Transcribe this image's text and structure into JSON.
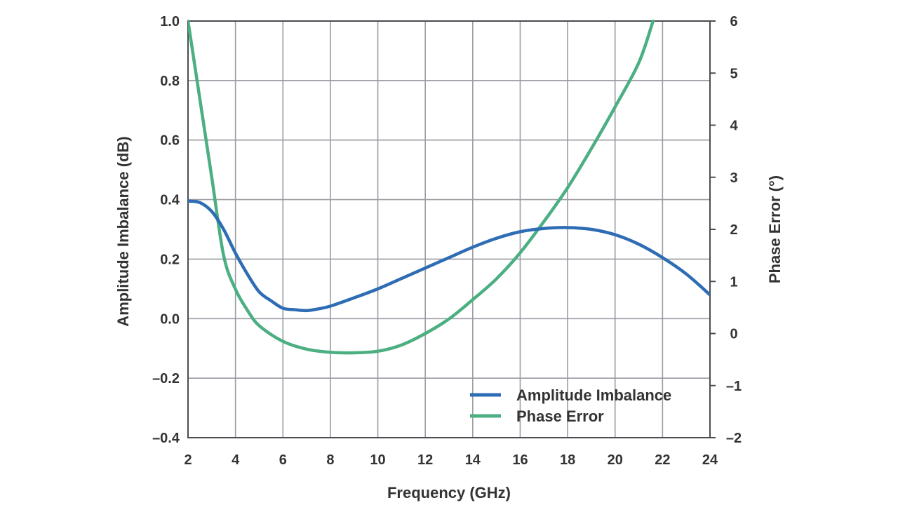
{
  "chart_data": {
    "type": "line",
    "title": "",
    "xlabel": "Frequency (GHz)",
    "ylabel_left": "Amplitude Imbalance (dB)",
    "ylabel_right": "Phase Error (°)",
    "xlim": [
      2,
      24
    ],
    "ylim_left": [
      -0.4,
      1.0
    ],
    "ylim_right": [
      -2,
      6
    ],
    "x_ticks": [
      2,
      4,
      6,
      8,
      10,
      12,
      14,
      16,
      18,
      20,
      22,
      24
    ],
    "x_tick_labels": [
      "2",
      "4",
      "6",
      "8",
      "10",
      "12",
      "14",
      "16",
      "18",
      "20",
      "22",
      "24"
    ],
    "y_left_ticks": [
      -0.4,
      -0.2,
      0.0,
      0.2,
      0.4,
      0.6,
      0.8,
      1.0
    ],
    "y_left_tick_labels": [
      "–0.4",
      "–0.2",
      "0.0",
      "0.2",
      "0.4",
      "0.6",
      "0.8",
      "1.0"
    ],
    "y_right_ticks": [
      -2,
      -1,
      0,
      1,
      2,
      3,
      4,
      5,
      6
    ],
    "y_right_tick_labels": [
      "–2",
      "–1",
      "0",
      "1",
      "2",
      "3",
      "4",
      "5",
      "6"
    ],
    "grid": true,
    "legend_position": "bottom-right",
    "series": [
      {
        "name": "Amplitude Imbalance",
        "axis": "left",
        "color": "#2e6db4",
        "x": [
          2,
          2.5,
          3,
          3.5,
          4,
          4.5,
          5,
          5.5,
          6,
          6.5,
          7,
          7.5,
          8,
          9,
          10,
          11,
          12,
          13,
          14,
          15,
          16,
          17,
          18,
          19,
          20,
          21,
          22,
          23,
          24
        ],
        "y": [
          0.395,
          0.39,
          0.36,
          0.3,
          0.22,
          0.15,
          0.09,
          0.06,
          0.035,
          0.03,
          0.027,
          0.033,
          0.042,
          0.07,
          0.1,
          0.135,
          0.17,
          0.205,
          0.24,
          0.27,
          0.292,
          0.303,
          0.306,
          0.3,
          0.282,
          0.25,
          0.205,
          0.15,
          0.08
        ]
      },
      {
        "name": "Phase Error",
        "axis": "right",
        "color": "#4caf82",
        "x": [
          2,
          2.5,
          3,
          3.5,
          4,
          4.5,
          5,
          6,
          7,
          8,
          9,
          10,
          11,
          12,
          13,
          14,
          15,
          16,
          17,
          18,
          19,
          20,
          21,
          21.6
        ],
        "y": [
          6.0,
          4.5,
          3.0,
          1.5,
          0.85,
          0.45,
          0.15,
          -0.15,
          -0.3,
          -0.36,
          -0.37,
          -0.34,
          -0.22,
          0.0,
          0.28,
          0.65,
          1.05,
          1.55,
          2.15,
          2.8,
          3.55,
          4.35,
          5.2,
          6.0
        ]
      }
    ]
  }
}
